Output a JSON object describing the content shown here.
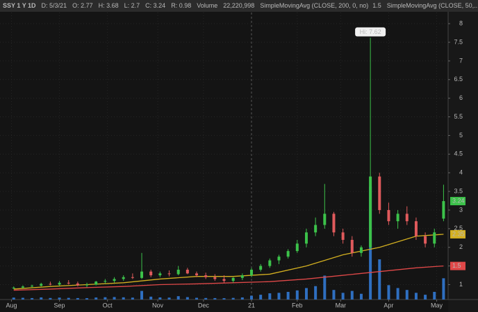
{
  "chart_data": {
    "type": "candlestick",
    "header": [
      "SSY 1 Y 1D",
      "D: 5/3/21",
      "O: 2.77",
      "H: 3.68",
      "L: 2.7",
      "C: 3.24",
      "R: 0.98",
      "Volume",
      "22,220,998"
    ],
    "annotation": "Hi: 7.62",
    "x": [
      1,
      5,
      9,
      13,
      17,
      21,
      25,
      29,
      33,
      37,
      41,
      45,
      49,
      53,
      57,
      61,
      65,
      69,
      73,
      77,
      81,
      85,
      89,
      93,
      97,
      101,
      105,
      109,
      113,
      117,
      121,
      125,
      129,
      133,
      137,
      141,
      145,
      149,
      153,
      157,
      161,
      165,
      169,
      173,
      177,
      181,
      185,
      189
    ],
    "open": [
      0.9,
      0.92,
      0.95,
      0.97,
      1.02,
      1.0,
      1.05,
      1.03,
      0.98,
      1.0,
      1.08,
      1.1,
      1.15,
      1.2,
      1.18,
      1.35,
      1.25,
      1.3,
      1.28,
      1.4,
      1.3,
      1.25,
      1.2,
      1.15,
      1.1,
      1.18,
      1.25,
      1.4,
      1.5,
      1.65,
      1.75,
      1.9,
      2.1,
      2.4,
      2.6,
      2.9,
      2.4,
      2.2,
      1.85,
      2.0,
      3.9,
      3.0,
      2.7,
      2.9,
      2.7,
      2.3,
      2.1,
      2.77
    ],
    "high": [
      0.95,
      0.98,
      1.0,
      1.05,
      1.08,
      1.1,
      1.12,
      1.08,
      1.05,
      1.1,
      1.15,
      1.2,
      1.25,
      1.3,
      1.85,
      1.4,
      1.35,
      1.38,
      1.5,
      1.45,
      1.35,
      1.32,
      1.28,
      1.25,
      1.2,
      1.3,
      1.45,
      1.55,
      1.7,
      1.8,
      1.95,
      2.2,
      2.5,
      2.8,
      3.7,
      2.95,
      2.5,
      2.3,
      2.05,
      7.62,
      4.0,
      3.2,
      3.0,
      3.1,
      2.8,
      2.4,
      2.5,
      3.68
    ],
    "low": [
      0.88,
      0.9,
      0.93,
      0.95,
      0.98,
      0.97,
      1.0,
      0.95,
      0.93,
      0.98,
      1.03,
      1.05,
      1.1,
      1.15,
      1.15,
      1.2,
      1.2,
      1.22,
      1.25,
      1.28,
      1.2,
      1.15,
      1.1,
      1.05,
      1.05,
      1.12,
      1.2,
      1.35,
      1.45,
      1.55,
      1.7,
      1.85,
      2.0,
      2.3,
      2.5,
      2.3,
      2.1,
      1.75,
      1.75,
      1.95,
      2.9,
      2.6,
      2.5,
      2.6,
      2.2,
      2.0,
      2.0,
      2.7
    ],
    "close": [
      0.92,
      0.95,
      0.97,
      1.02,
      1.0,
      1.05,
      1.03,
      0.98,
      1.0,
      1.08,
      1.1,
      1.15,
      1.2,
      1.18,
      1.35,
      1.25,
      1.3,
      1.28,
      1.4,
      1.3,
      1.25,
      1.2,
      1.15,
      1.1,
      1.18,
      1.25,
      1.4,
      1.5,
      1.65,
      1.75,
      1.9,
      2.1,
      2.4,
      2.6,
      2.9,
      2.4,
      2.2,
      1.85,
      2.0,
      3.9,
      3.0,
      2.7,
      2.9,
      2.7,
      2.3,
      2.1,
      2.4,
      3.24
    ],
    "volume": [
      2000000,
      1800000,
      1500000,
      2200000,
      1600000,
      2000000,
      1700000,
      1500000,
      1400000,
      2100000,
      2400000,
      2600000,
      2300000,
      2000000,
      9000000,
      3000000,
      2200000,
      2000000,
      3500000,
      2500000,
      1800000,
      1600000,
      1500000,
      1400000,
      1700000,
      2200000,
      4000000,
      5000000,
      6500000,
      7000000,
      8000000,
      9500000,
      12000000,
      14000000,
      25000000,
      10000000,
      7000000,
      9000000,
      6000000,
      118000000,
      42000000,
      15000000,
      12000000,
      10000000,
      7000000,
      5000000,
      8000000,
      22220998
    ],
    "up_color": "#3cc24a",
    "down_color": "#e05a5c",
    "volume_color": "#2f6fc0",
    "series": [
      {
        "name": "SimpleMovingAvg (CLOSE, 200, 0, no)",
        "color": "#e04848",
        "x": [
          1,
          17,
          33,
          49,
          65,
          81,
          97,
          113,
          129,
          145,
          161,
          177,
          189
        ],
        "values": [
          0.85,
          0.88,
          0.92,
          0.95,
          1.0,
          1.02,
          1.05,
          1.08,
          1.15,
          1.25,
          1.35,
          1.45,
          1.5
        ]
      },
      {
        "name": "SimpleMovingAvg (CLOSE, 50,...",
        "color": "#d4b020",
        "x": [
          1,
          17,
          33,
          49,
          65,
          81,
          97,
          113,
          129,
          145,
          161,
          177,
          189
        ],
        "values": [
          0.88,
          0.95,
          1.0,
          1.05,
          1.15,
          1.22,
          1.22,
          1.28,
          1.5,
          1.8,
          2.0,
          2.3,
          2.35
        ]
      }
    ],
    "xlim": [
      -5,
      191
    ],
    "xticks": [
      {
        "value": 0,
        "label": "Aug"
      },
      {
        "value": 21,
        "label": "Sep"
      },
      {
        "value": 42,
        "label": "Oct"
      },
      {
        "value": 64,
        "label": "Nov"
      },
      {
        "value": 84,
        "label": "Dec"
      },
      {
        "value": 105,
        "label": "21"
      },
      {
        "value": 125,
        "label": "Feb"
      },
      {
        "value": 144,
        "label": "Mar"
      },
      {
        "value": 165,
        "label": "Apr"
      },
      {
        "value": 186,
        "label": "May"
      }
    ],
    "ylim": [
      0.6,
      8.3
    ],
    "yticks": [
      1,
      1.5,
      2,
      2.5,
      3,
      3.5,
      4,
      4.5,
      5,
      5.5,
      6,
      6.5,
      7,
      7.5,
      8
    ],
    "y2lim": [
      0,
      300000000
    ],
    "grid": true
  }
}
